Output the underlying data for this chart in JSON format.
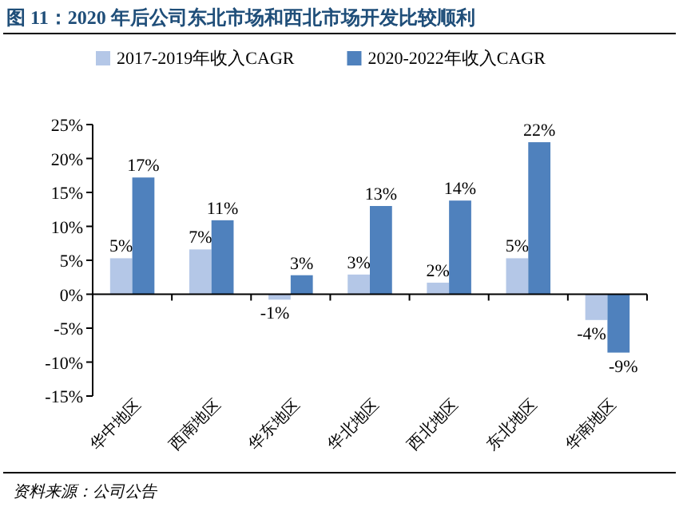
{
  "chart_data": {
    "type": "bar",
    "title": "图 11：2020 年后公司东北市场和西北市场开发比较顺利",
    "categories": [
      "华中地区",
      "西南地区",
      "华东地区",
      "华北地区",
      "西北地区",
      "东北地区",
      "华南地区"
    ],
    "series": [
      {
        "name": "2017-2019年收入CAGR",
        "color": "#b4c7e7",
        "values": [
          5.3,
          6.6,
          -0.8,
          2.9,
          1.7,
          5.3,
          -3.8
        ],
        "value_labels": [
          "5%",
          "7%",
          "-1%",
          "3%",
          "2%",
          "5%",
          "-4%"
        ]
      },
      {
        "name": "2020-2022年收入CAGR",
        "color": "#4f81bd",
        "values": [
          17.2,
          10.9,
          2.8,
          13.0,
          13.8,
          22.4,
          -8.6
        ],
        "value_labels": [
          "17%",
          "11%",
          "3%",
          "13%",
          "14%",
          "22%",
          "-9%"
        ]
      }
    ],
    "ylim": [
      -15,
      25
    ],
    "yticks": [
      {
        "value": -15,
        "label": "-15%"
      },
      {
        "value": -10,
        "label": "-10%"
      },
      {
        "value": -5,
        "label": "-5%"
      },
      {
        "value": 0,
        "label": "0%"
      },
      {
        "value": 5,
        "label": "5%"
      },
      {
        "value": 10,
        "label": "10%"
      },
      {
        "value": 15,
        "label": "15%"
      },
      {
        "value": 20,
        "label": "20%"
      },
      {
        "value": 25,
        "label": "25%"
      }
    ],
    "legend": "top",
    "annotations": [
      "资料来源：公司公告"
    ]
  }
}
